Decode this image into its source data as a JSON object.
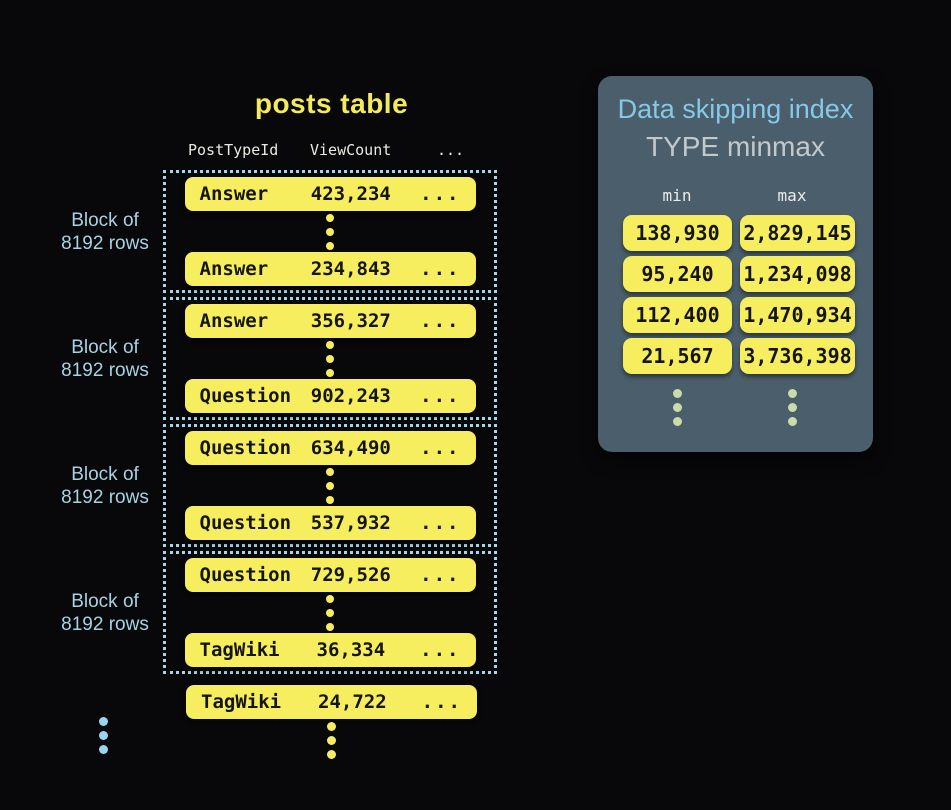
{
  "posts_table": {
    "title": "posts table",
    "columns": [
      "PostTypeId",
      "ViewCount",
      "..."
    ],
    "block_label_line1": "Block of",
    "block_label_line2": "8192 rows",
    "blocks": [
      {
        "rows": [
          {
            "type": "Answer",
            "views": "423,234"
          },
          {
            "type": "Answer",
            "views": "234,843"
          }
        ]
      },
      {
        "rows": [
          {
            "type": "Answer",
            "views": "356,327"
          },
          {
            "type": "Question",
            "views": "902,243"
          }
        ]
      },
      {
        "rows": [
          {
            "type": "Question",
            "views": "634,490"
          },
          {
            "type": "Question",
            "views": "537,932"
          }
        ]
      },
      {
        "rows": [
          {
            "type": "Question",
            "views": "729,526"
          },
          {
            "type": "TagWiki",
            "views": "36,334"
          }
        ]
      }
    ],
    "trailing_row": {
      "type": "TagWiki",
      "views": "24,722"
    },
    "ellipsis": "..."
  },
  "index_panel": {
    "title": "Data skipping index",
    "subtitle": "TYPE minmax",
    "min_header": "min",
    "max_header": "max",
    "rows": [
      {
        "min": "138,930",
        "max": "2,829,145"
      },
      {
        "min": "95,240",
        "max": "1,234,098"
      },
      {
        "min": "112,400",
        "max": "1,470,934"
      },
      {
        "min": "21,567",
        "max": "3,736,398"
      }
    ]
  },
  "colors": {
    "background": "#08080a",
    "row_yellow": "#f7ee5f",
    "block_border_blue": "#a3d8ea",
    "label_blue": "#a6d3e4",
    "panel_background": "#4a5f6b",
    "panel_title_blue": "#86c8e8",
    "panel_dot_green": "#cbdcab"
  }
}
